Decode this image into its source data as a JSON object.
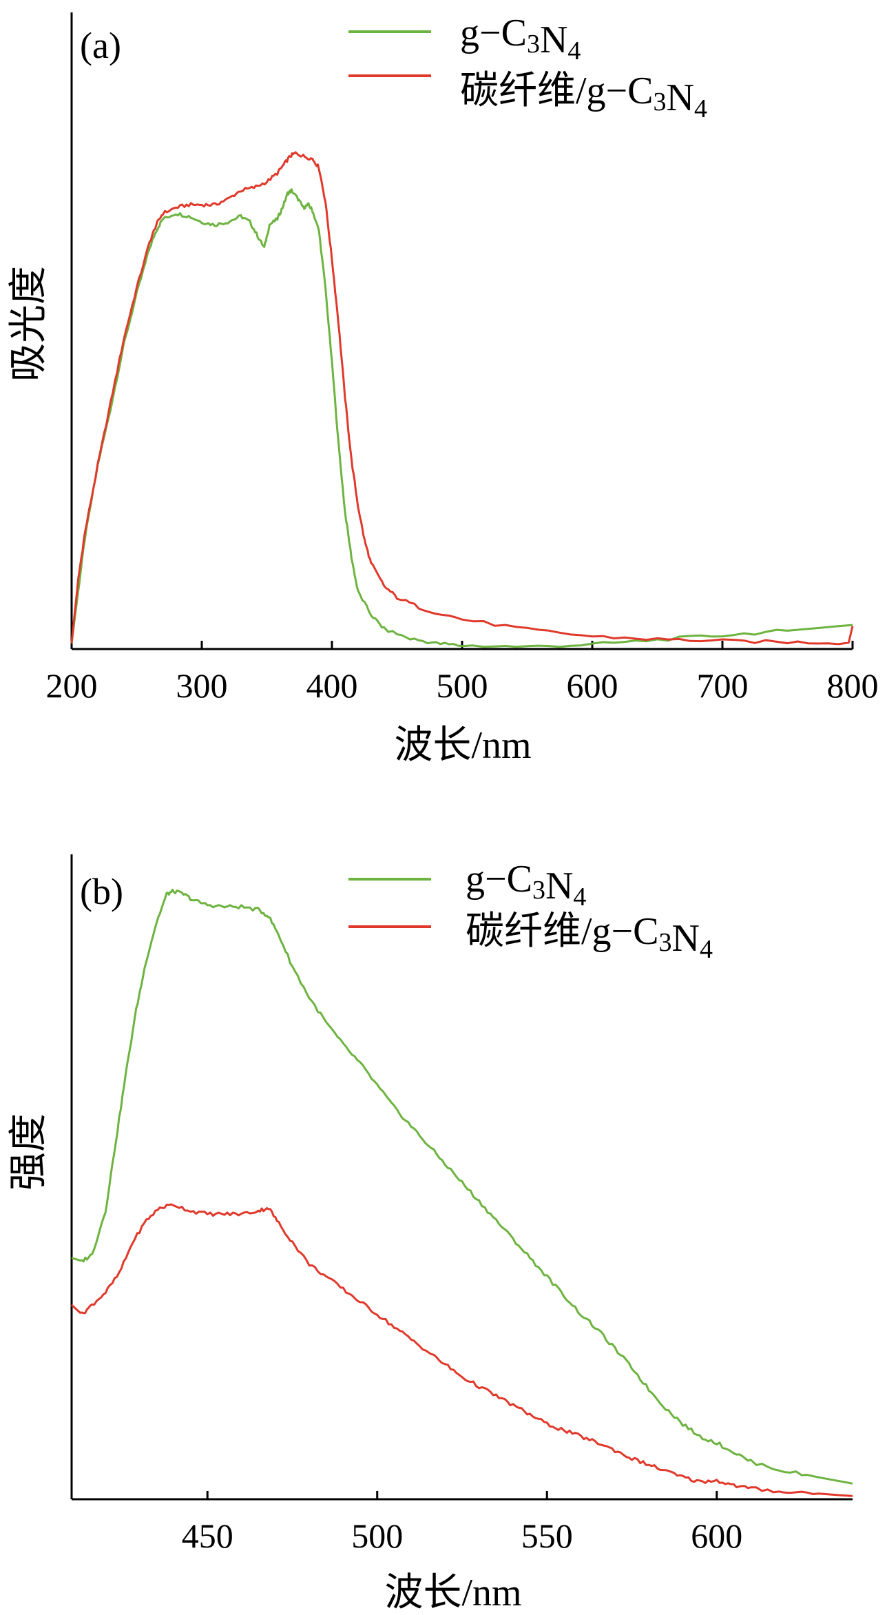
{
  "colors": {
    "g_c3n4": "#6db33f",
    "carbon_fiber": "#e0392b",
    "axis": "#000000"
  },
  "chart_data": [
    {
      "type": "line",
      "panel_label": "(a)",
      "xlabel": "波长/nm",
      "ylabel": "吸光度",
      "xlim": [
        200,
        800
      ],
      "ylim": [
        0,
        1
      ],
      "x_ticks": [
        200,
        300,
        400,
        500,
        600,
        700,
        800
      ],
      "y_ticks_shown": false,
      "legend_position": "top-right",
      "series": [
        {
          "name": "g−C3N4",
          "color": "#6db33f",
          "points": [
            [
              200,
              0.01
            ],
            [
              205,
              0.1
            ],
            [
              210,
              0.19
            ],
            [
              220,
              0.32
            ],
            [
              230,
              0.42
            ],
            [
              240,
              0.53
            ],
            [
              250,
              0.62
            ],
            [
              260,
              0.7
            ],
            [
              265,
              0.73
            ],
            [
              270,
              0.75
            ],
            [
              280,
              0.76
            ],
            [
              290,
              0.755
            ],
            [
              300,
              0.745
            ],
            [
              310,
              0.74
            ],
            [
              320,
              0.745
            ],
            [
              330,
              0.755
            ],
            [
              337,
              0.745
            ],
            [
              343,
              0.72
            ],
            [
              348,
              0.7
            ],
            [
              352,
              0.74
            ],
            [
              358,
              0.75
            ],
            [
              362,
              0.77
            ],
            [
              366,
              0.795
            ],
            [
              369,
              0.8
            ],
            [
              374,
              0.785
            ],
            [
              378,
              0.77
            ],
            [
              382,
              0.775
            ],
            [
              385,
              0.765
            ],
            [
              390,
              0.73
            ],
            [
              395,
              0.63
            ],
            [
              400,
              0.5
            ],
            [
              405,
              0.36
            ],
            [
              410,
              0.24
            ],
            [
              415,
              0.16
            ],
            [
              420,
              0.1
            ],
            [
              430,
              0.06
            ],
            [
              440,
              0.035
            ],
            [
              460,
              0.018
            ],
            [
              480,
              0.01
            ],
            [
              500,
              0.006
            ],
            [
              550,
              0.004
            ],
            [
              600,
              0.008
            ],
            [
              650,
              0.016
            ],
            [
              700,
              0.024
            ],
            [
              750,
              0.032
            ],
            [
              800,
              0.042
            ]
          ]
        },
        {
          "name": "碳纤维/g−C3N4",
          "color": "#e0392b",
          "points": [
            [
              200,
              0.01
            ],
            [
              205,
              0.12
            ],
            [
              210,
              0.2
            ],
            [
              220,
              0.32
            ],
            [
              230,
              0.43
            ],
            [
              240,
              0.54
            ],
            [
              250,
              0.63
            ],
            [
              260,
              0.71
            ],
            [
              265,
              0.74
            ],
            [
              270,
              0.76
            ],
            [
              280,
              0.77
            ],
            [
              290,
              0.775
            ],
            [
              300,
              0.775
            ],
            [
              310,
              0.775
            ],
            [
              320,
              0.785
            ],
            [
              330,
              0.8
            ],
            [
              340,
              0.805
            ],
            [
              350,
              0.815
            ],
            [
              358,
              0.83
            ],
            [
              363,
              0.845
            ],
            [
              368,
              0.86
            ],
            [
              372,
              0.865
            ],
            [
              378,
              0.86
            ],
            [
              385,
              0.855
            ],
            [
              390,
              0.84
            ],
            [
              395,
              0.78
            ],
            [
              400,
              0.68
            ],
            [
              405,
              0.57
            ],
            [
              410,
              0.44
            ],
            [
              415,
              0.33
            ],
            [
              420,
              0.25
            ],
            [
              425,
              0.19
            ],
            [
              430,
              0.15
            ],
            [
              440,
              0.11
            ],
            [
              450,
              0.09
            ],
            [
              470,
              0.07
            ],
            [
              500,
              0.052
            ],
            [
              550,
              0.034
            ],
            [
              600,
              0.022
            ],
            [
              650,
              0.017
            ],
            [
              700,
              0.014
            ],
            [
              750,
              0.012
            ],
            [
              797,
              0.011
            ],
            [
              800,
              0.04
            ]
          ]
        }
      ]
    },
    {
      "type": "line",
      "panel_label": "(b)",
      "xlabel": "波长/nm",
      "ylabel": "强度",
      "xlim": [
        410,
        640
      ],
      "ylim": [
        0,
        1
      ],
      "x_ticks": [
        450,
        500,
        550,
        600
      ],
      "y_ticks_shown": false,
      "legend_position": "top-right",
      "series": [
        {
          "name": "g−C3N4",
          "color": "#6db33f",
          "points": [
            [
              410,
              0.385
            ],
            [
              413,
              0.38
            ],
            [
              416,
              0.39
            ],
            [
              420,
              0.46
            ],
            [
              423,
              0.57
            ],
            [
              426,
              0.68
            ],
            [
              429,
              0.78
            ],
            [
              432,
              0.86
            ],
            [
              435,
              0.92
            ],
            [
              438,
              0.965
            ],
            [
              440,
              0.97
            ],
            [
              443,
              0.965
            ],
            [
              446,
              0.955
            ],
            [
              450,
              0.948
            ],
            [
              455,
              0.945
            ],
            [
              460,
              0.945
            ],
            [
              465,
              0.94
            ],
            [
              468,
              0.93
            ],
            [
              471,
              0.9
            ],
            [
              475,
              0.85
            ],
            [
              480,
              0.8
            ],
            [
              485,
              0.76
            ],
            [
              490,
              0.725
            ],
            [
              495,
              0.695
            ],
            [
              500,
              0.66
            ],
            [
              505,
              0.625
            ],
            [
              510,
              0.595
            ],
            [
              515,
              0.565
            ],
            [
              520,
              0.535
            ],
            [
              525,
              0.505
            ],
            [
              530,
              0.475
            ],
            [
              535,
              0.445
            ],
            [
              540,
              0.415
            ],
            [
              545,
              0.385
            ],
            [
              550,
              0.355
            ],
            [
              555,
              0.325
            ],
            [
              560,
              0.295
            ],
            [
              565,
              0.27
            ],
            [
              570,
              0.24
            ],
            [
              575,
              0.21
            ],
            [
              580,
              0.175
            ],
            [
              585,
              0.145
            ],
            [
              590,
              0.12
            ],
            [
              595,
              0.1
            ],
            [
              600,
              0.09
            ],
            [
              605,
              0.075
            ],
            [
              610,
              0.06
            ],
            [
              620,
              0.045
            ],
            [
              630,
              0.035
            ],
            [
              640,
              0.025
            ]
          ]
        },
        {
          "name": "碳纤维/g−C3N4",
          "color": "#e0392b",
          "points": [
            [
              410,
              0.31
            ],
            [
              413,
              0.295
            ],
            [
              416,
              0.31
            ],
            [
              420,
              0.33
            ],
            [
              424,
              0.36
            ],
            [
              428,
              0.41
            ],
            [
              432,
              0.445
            ],
            [
              436,
              0.465
            ],
            [
              440,
              0.47
            ],
            [
              445,
              0.46
            ],
            [
              450,
              0.455
            ],
            [
              455,
              0.455
            ],
            [
              460,
              0.455
            ],
            [
              465,
              0.46
            ],
            [
              468,
              0.465
            ],
            [
              471,
              0.44
            ],
            [
              475,
              0.41
            ],
            [
              480,
              0.375
            ],
            [
              485,
              0.355
            ],
            [
              490,
              0.335
            ],
            [
              495,
              0.315
            ],
            [
              500,
              0.295
            ],
            [
              505,
              0.275
            ],
            [
              510,
              0.255
            ],
            [
              515,
              0.235
            ],
            [
              520,
              0.215
            ],
            [
              525,
              0.195
            ],
            [
              530,
              0.18
            ],
            [
              535,
              0.165
            ],
            [
              540,
              0.15
            ],
            [
              545,
              0.135
            ],
            [
              550,
              0.12
            ],
            [
              555,
              0.11
            ],
            [
              560,
              0.1
            ],
            [
              565,
              0.09
            ],
            [
              570,
              0.078
            ],
            [
              575,
              0.065
            ],
            [
              580,
              0.055
            ],
            [
              585,
              0.045
            ],
            [
              590,
              0.035
            ],
            [
              595,
              0.028
            ],
            [
              600,
              0.03
            ],
            [
              605,
              0.022
            ],
            [
              610,
              0.017
            ],
            [
              620,
              0.012
            ],
            [
              630,
              0.009
            ],
            [
              640,
              0.005
            ]
          ]
        }
      ]
    }
  ]
}
